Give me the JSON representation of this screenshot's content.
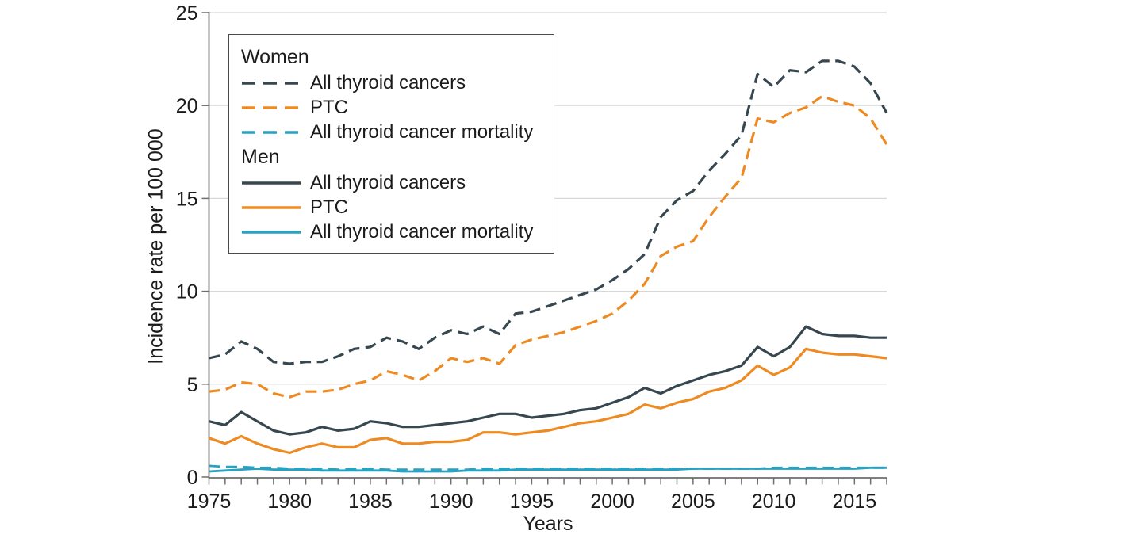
{
  "style": {
    "dark": "#36474F",
    "orange": "#EE8A22",
    "teal": "#29A2C1",
    "grid": "#D8D8D8",
    "axis": "#6E6E6E",
    "text": "#1B1B1B",
    "legend_border": "#4A4A4A",
    "background": "#FFFFFF"
  },
  "legend": {
    "groups": [
      {
        "label": "Women",
        "items": [
          {
            "label": "All thyroid cancers",
            "series": 0
          },
          {
            "label": "PTC",
            "series": 1
          },
          {
            "label": "All thyroid cancer mortality",
            "series": 2
          }
        ]
      },
      {
        "label": "Men",
        "items": [
          {
            "label": "All thyroid cancers",
            "series": 3
          },
          {
            "label": "PTC",
            "series": 4
          },
          {
            "label": "All thyroid cancer mortality",
            "series": 5
          }
        ]
      }
    ]
  },
  "chart_data": {
    "type": "line",
    "title": "",
    "xlabel": "Years",
    "ylabel": "Incidence rate per 100 000",
    "xlim": [
      1975,
      2017
    ],
    "ylim": [
      0,
      25
    ],
    "x_ticks": [
      1975,
      1980,
      1985,
      1990,
      1995,
      2000,
      2005,
      2010,
      2015
    ],
    "y_ticks": [
      0,
      5,
      10,
      15,
      20,
      25
    ],
    "grid": "horizontal",
    "legend_position": "upper-left",
    "years": [
      1975,
      1976,
      1977,
      1978,
      1979,
      1980,
      1981,
      1982,
      1983,
      1984,
      1985,
      1986,
      1987,
      1988,
      1989,
      1990,
      1991,
      1992,
      1993,
      1994,
      1995,
      1996,
      1997,
      1998,
      1999,
      2000,
      2001,
      2002,
      2003,
      2004,
      2005,
      2006,
      2007,
      2008,
      2009,
      2010,
      2011,
      2012,
      2013,
      2014,
      2015,
      2016,
      2017
    ],
    "series": [
      {
        "id": "women-all",
        "name": "Women - All thyroid cancers",
        "color": "#36474F",
        "dashed": true,
        "values": [
          6.4,
          6.6,
          7.3,
          6.9,
          6.2,
          6.1,
          6.2,
          6.2,
          6.5,
          6.9,
          7.0,
          7.5,
          7.3,
          6.9,
          7.5,
          7.9,
          7.7,
          8.1,
          7.7,
          8.8,
          8.9,
          9.2,
          9.5,
          9.8,
          10.1,
          10.6,
          11.2,
          12.0,
          14.0,
          14.9,
          15.4,
          16.5,
          17.4,
          18.4,
          21.7,
          21.0,
          21.9,
          21.8,
          22.4,
          22.4,
          22.1,
          21.2,
          19.6
        ]
      },
      {
        "id": "women-ptc",
        "name": "Women - PTC",
        "color": "#EE8A22",
        "dashed": true,
        "values": [
          4.6,
          4.7,
          5.1,
          5.0,
          4.5,
          4.3,
          4.6,
          4.6,
          4.7,
          5.0,
          5.2,
          5.7,
          5.5,
          5.2,
          5.7,
          6.4,
          6.2,
          6.4,
          6.1,
          7.1,
          7.4,
          7.6,
          7.8,
          8.1,
          8.4,
          8.8,
          9.5,
          10.4,
          11.9,
          12.4,
          12.7,
          14.0,
          15.1,
          16.1,
          19.3,
          19.1,
          19.6,
          19.9,
          20.5,
          20.2,
          20.0,
          19.3,
          17.9
        ]
      },
      {
        "id": "women-mortality",
        "name": "Women - All thyroid cancer mortality",
        "color": "#29A2C1",
        "dashed": true,
        "values": [
          0.6,
          0.55,
          0.55,
          0.5,
          0.5,
          0.45,
          0.45,
          0.45,
          0.4,
          0.45,
          0.45,
          0.4,
          0.4,
          0.4,
          0.4,
          0.4,
          0.4,
          0.45,
          0.45,
          0.45,
          0.45,
          0.45,
          0.45,
          0.45,
          0.45,
          0.45,
          0.45,
          0.45,
          0.45,
          0.45,
          0.45,
          0.45,
          0.45,
          0.45,
          0.45,
          0.5,
          0.5,
          0.5,
          0.5,
          0.5,
          0.5,
          0.5,
          0.5
        ]
      },
      {
        "id": "men-all",
        "name": "Men - All thyroid cancers",
        "color": "#36474F",
        "dashed": false,
        "values": [
          3.0,
          2.8,
          3.5,
          3.0,
          2.5,
          2.3,
          2.4,
          2.7,
          2.5,
          2.6,
          3.0,
          2.9,
          2.7,
          2.7,
          2.8,
          2.9,
          3.0,
          3.2,
          3.4,
          3.4,
          3.2,
          3.3,
          3.4,
          3.6,
          3.7,
          4.0,
          4.3,
          4.8,
          4.5,
          4.9,
          5.2,
          5.5,
          5.7,
          6.0,
          7.0,
          6.5,
          7.0,
          8.1,
          7.7,
          7.6,
          7.6,
          7.5,
          7.5
        ]
      },
      {
        "id": "men-ptc",
        "name": "Men - PTC",
        "color": "#EE8A22",
        "dashed": false,
        "values": [
          2.1,
          1.8,
          2.2,
          1.8,
          1.5,
          1.3,
          1.6,
          1.8,
          1.6,
          1.6,
          2.0,
          2.1,
          1.8,
          1.8,
          1.9,
          1.9,
          2.0,
          2.4,
          2.4,
          2.3,
          2.4,
          2.5,
          2.7,
          2.9,
          3.0,
          3.2,
          3.4,
          3.9,
          3.7,
          4.0,
          4.2,
          4.6,
          4.8,
          5.2,
          6.0,
          5.5,
          5.9,
          6.9,
          6.7,
          6.6,
          6.6,
          6.5,
          6.4
        ]
      },
      {
        "id": "men-mortality",
        "name": "Men - All thyroid cancer mortality",
        "color": "#29A2C1",
        "dashed": false,
        "values": [
          0.3,
          0.35,
          0.4,
          0.45,
          0.4,
          0.4,
          0.4,
          0.35,
          0.35,
          0.35,
          0.35,
          0.35,
          0.3,
          0.3,
          0.3,
          0.3,
          0.35,
          0.35,
          0.35,
          0.4,
          0.4,
          0.4,
          0.4,
          0.4,
          0.4,
          0.4,
          0.4,
          0.4,
          0.4,
          0.4,
          0.45,
          0.45,
          0.45,
          0.45,
          0.45,
          0.45,
          0.45,
          0.45,
          0.45,
          0.45,
          0.45,
          0.5,
          0.5
        ]
      }
    ]
  }
}
